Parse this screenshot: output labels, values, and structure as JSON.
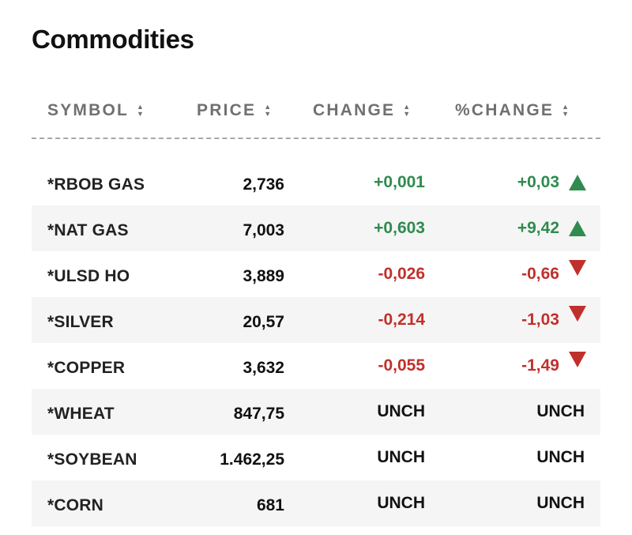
{
  "title": "Commodities",
  "columns": {
    "symbol": "SYMBOL",
    "price": "PRICE",
    "change": "CHANGE",
    "pct_change": "%CHANGE"
  },
  "colors": {
    "up": "#2f8b4e",
    "down": "#c0302b",
    "header_text": "#707070",
    "row_alt_bg": "#f5f5f5"
  },
  "icons": {
    "sort": "sort-icon",
    "up": "triangle-up-icon",
    "down": "triangle-down-icon"
  },
  "rows": [
    {
      "symbol": "*RBOB GAS",
      "price": "2,736",
      "change": "+0,001",
      "pct_change": "+0,03",
      "direction": "up"
    },
    {
      "symbol": "*NAT GAS",
      "price": "7,003",
      "change": "+0,603",
      "pct_change": "+9,42",
      "direction": "up"
    },
    {
      "symbol": "*ULSD HO",
      "price": "3,889",
      "change": "-0,026",
      "pct_change": "-0,66",
      "direction": "down"
    },
    {
      "symbol": "*SILVER",
      "price": "20,57",
      "change": "-0,214",
      "pct_change": "-1,03",
      "direction": "down"
    },
    {
      "symbol": "*COPPER",
      "price": "3,632",
      "change": "-0,055",
      "pct_change": "-1,49",
      "direction": "down"
    },
    {
      "symbol": "*WHEAT",
      "price": "847,75",
      "change": "UNCH",
      "pct_change": "UNCH",
      "direction": "neutral"
    },
    {
      "symbol": "*SOYBEAN",
      "price": "1.462,25",
      "change": "UNCH",
      "pct_change": "UNCH",
      "direction": "neutral"
    },
    {
      "symbol": "*CORN",
      "price": "681",
      "change": "UNCH",
      "pct_change": "UNCH",
      "direction": "neutral"
    }
  ]
}
